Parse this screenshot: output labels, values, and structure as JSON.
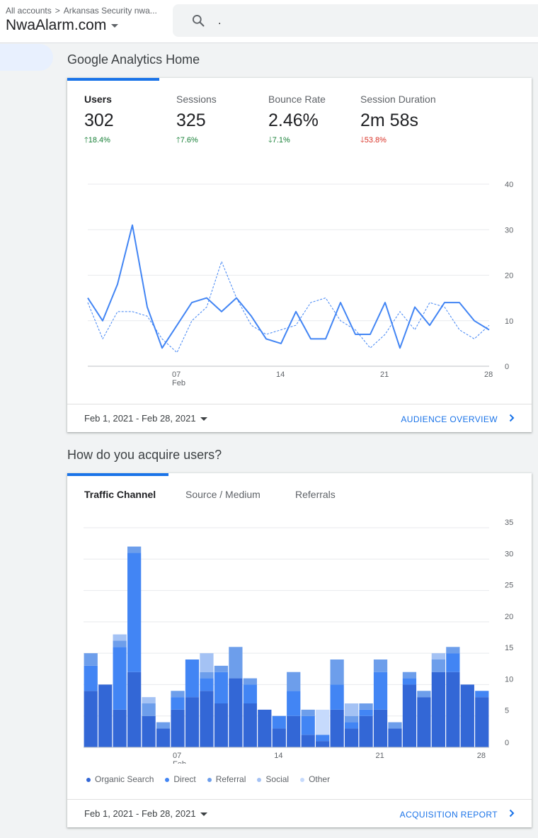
{
  "header": {
    "breadcrumb_all": "All accounts",
    "breadcrumb_sep": ">",
    "breadcrumb_account": "Arkansas Security nwa...",
    "account_name": "NwaAlarm.com",
    "search_value": "."
  },
  "home": {
    "title": "Google Analytics Home",
    "metrics": [
      {
        "label": "Users",
        "value": "302",
        "change": "18.4%",
        "direction": "up"
      },
      {
        "label": "Sessions",
        "value": "325",
        "change": "7.6%",
        "direction": "up"
      },
      {
        "label": "Bounce Rate",
        "value": "2.46%",
        "change": "7.1%",
        "direction": "down-good"
      },
      {
        "label": "Session Duration",
        "value": "2m 58s",
        "change": "53.8%",
        "direction": "down-bad"
      }
    ],
    "date_range": "Feb 1, 2021 - Feb 28, 2021",
    "report_link": "AUDIENCE OVERVIEW"
  },
  "acquire": {
    "title": "How do you acquire users?",
    "tabs": [
      "Traffic Channel",
      "Source / Medium",
      "Referrals"
    ],
    "date_range": "Feb 1, 2021 - Feb 28, 2021",
    "report_link": "ACQUISITION REPORT"
  },
  "colors": {
    "accent": "#1a73e8",
    "up": "#188038",
    "down": "#d93025",
    "organic": "#3367d6",
    "direct": "#4285f4",
    "referral": "#6d9eeb",
    "social": "#a4c2f4",
    "other": "#c6dafc"
  },
  "chart_data": [
    {
      "type": "line",
      "x": [
        "Feb 1",
        "Feb 2",
        "Feb 3",
        "Feb 4",
        "Feb 5",
        "Feb 6",
        "Feb 7",
        "Feb 8",
        "Feb 9",
        "Feb 10",
        "Feb 11",
        "Feb 12",
        "Feb 13",
        "Feb 14",
        "Feb 15",
        "Feb 16",
        "Feb 17",
        "Feb 18",
        "Feb 19",
        "Feb 20",
        "Feb 21",
        "Feb 22",
        "Feb 23",
        "Feb 24",
        "Feb 25",
        "Feb 26",
        "Feb 27",
        "Feb 28"
      ],
      "x_ticks": [
        {
          "x": 7,
          "label": "07",
          "sub": "Feb"
        },
        {
          "x": 14,
          "label": "14"
        },
        {
          "x": 21,
          "label": "21"
        },
        {
          "x": 28,
          "label": "28"
        }
      ],
      "y_ticks": [
        0,
        10,
        20,
        30,
        40
      ],
      "ylim": [
        0,
        40
      ],
      "series": [
        {
          "values": [
            15,
            10,
            18,
            31,
            13,
            4,
            9,
            14,
            15,
            12,
            15,
            11,
            6,
            5,
            12,
            6,
            6,
            14,
            7,
            7,
            14,
            4,
            13,
            9,
            14,
            14,
            10,
            8
          ],
          "dashed": false
        },
        {
          "values": [
            14,
            6,
            12,
            12,
            11,
            6,
            3,
            10,
            13,
            23,
            15,
            9,
            7,
            8,
            9,
            14,
            15,
            10,
            8,
            4,
            7,
            12,
            8,
            14,
            13,
            8,
            6,
            9
          ],
          "dashed": true
        }
      ]
    },
    {
      "type": "bar",
      "stacked": true,
      "categories": [
        "Feb 1",
        "Feb 2",
        "Feb 3",
        "Feb 4",
        "Feb 5",
        "Feb 6",
        "Feb 7",
        "Feb 8",
        "Feb 9",
        "Feb 10",
        "Feb 11",
        "Feb 12",
        "Feb 13",
        "Feb 14",
        "Feb 15",
        "Feb 16",
        "Feb 17",
        "Feb 18",
        "Feb 19",
        "Feb 20",
        "Feb 21",
        "Feb 22",
        "Feb 23",
        "Feb 24",
        "Feb 25",
        "Feb 26",
        "Feb 27",
        "Feb 28"
      ],
      "x_ticks": [
        {
          "x": 7,
          "label": "07",
          "sub": "Feb"
        },
        {
          "x": 14,
          "label": "14"
        },
        {
          "x": 21,
          "label": "21"
        },
        {
          "x": 28,
          "label": "28"
        }
      ],
      "y_ticks": [
        0,
        5,
        10,
        15,
        20,
        25,
        30,
        35
      ],
      "ylim": [
        0,
        35
      ],
      "series": [
        {
          "name": "Organic Search",
          "values": [
            9,
            10,
            6,
            12,
            5,
            3,
            6,
            8,
            9,
            7,
            11,
            7,
            6,
            3,
            5,
            2,
            1,
            6,
            3,
            5,
            6,
            3,
            10,
            8,
            12,
            12,
            10,
            8
          ]
        },
        {
          "name": "Direct",
          "values": [
            4,
            0,
            10,
            19,
            0,
            0,
            2,
            6,
            2,
            5,
            0,
            3,
            0,
            2,
            4,
            3,
            1,
            4,
            1,
            1,
            6,
            0,
            1,
            0,
            0,
            3,
            0,
            1
          ]
        },
        {
          "name": "Referral",
          "values": [
            2,
            0,
            1,
            1,
            2,
            1,
            1,
            0,
            1,
            1,
            5,
            1,
            0,
            0,
            3,
            1,
            0,
            4,
            1,
            1,
            2,
            1,
            1,
            1,
            2,
            1,
            0,
            0
          ]
        },
        {
          "name": "Social",
          "values": [
            0,
            0,
            1,
            0,
            1,
            0,
            0,
            0,
            3,
            0,
            0,
            0,
            0,
            0,
            0,
            0,
            0,
            0,
            2,
            0,
            0,
            0,
            0,
            0,
            1,
            0,
            0,
            0
          ]
        },
        {
          "name": "Other",
          "values": [
            0,
            0,
            0,
            0,
            0,
            0,
            0,
            0,
            0,
            0,
            0,
            0,
            0,
            0,
            0,
            0,
            4,
            0,
            0,
            0,
            0,
            0,
            0,
            0,
            0,
            0,
            0,
            0
          ]
        }
      ]
    }
  ]
}
